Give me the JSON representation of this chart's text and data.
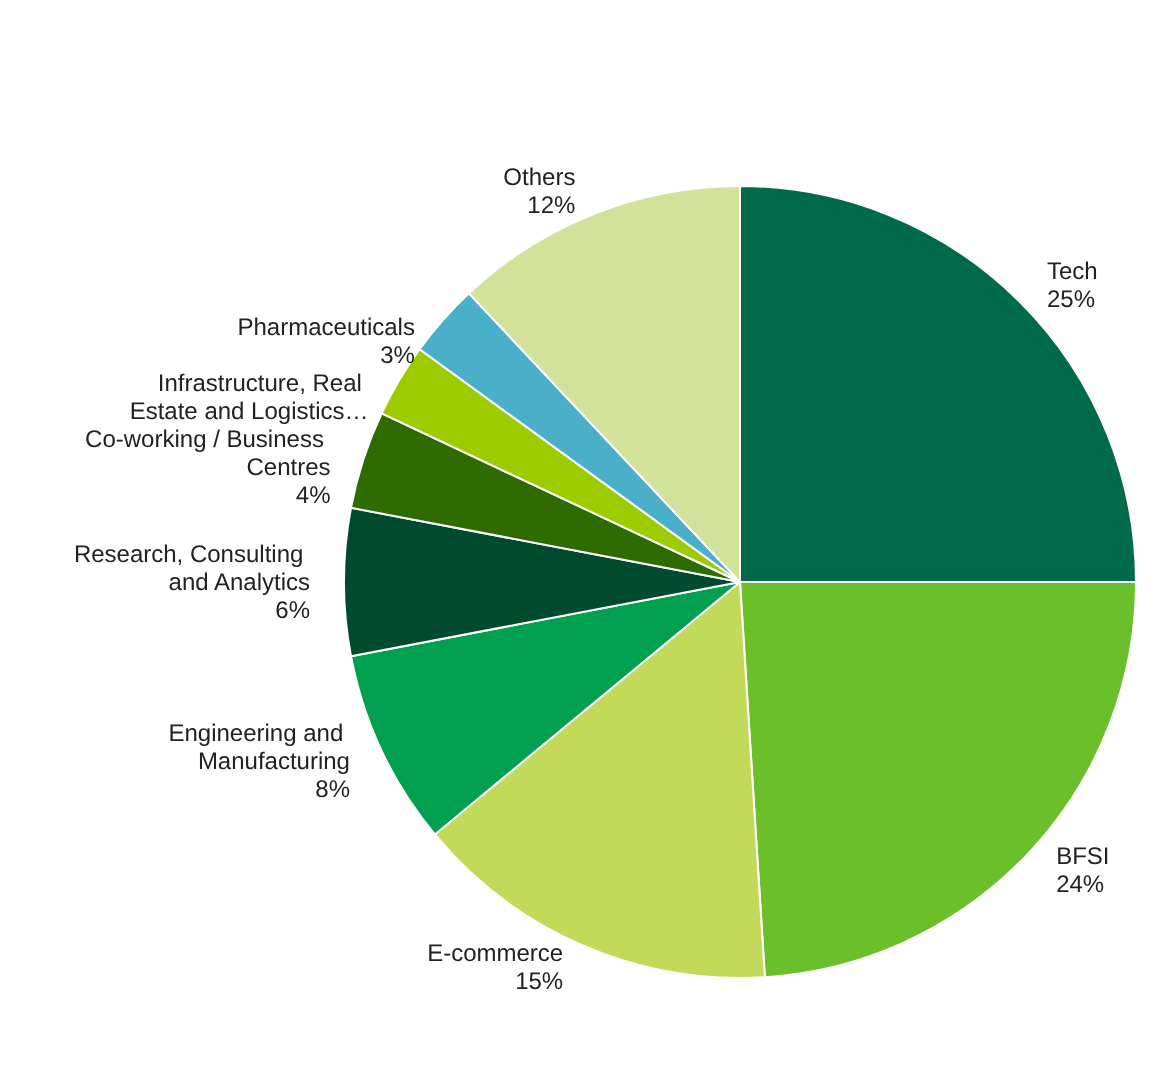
{
  "chart_data": {
    "type": "pie",
    "categories": [
      "Tech",
      "BFSI",
      "E-commerce",
      "Engineering and Manufacturing",
      "Research, Consulting and Analytics",
      "Co-working / Business Centres",
      "Infrastructure, Real Estate and Logistics…",
      "Pharmaceuticals",
      "Others"
    ],
    "values": [
      25,
      24,
      15,
      8,
      6,
      4,
      3,
      3,
      12
    ],
    "colors": [
      "#006b4a",
      "#6abf2a",
      "#c2d95a",
      "#00a04e",
      "#004a30",
      "#2e6b00",
      "#9ccc00",
      "#4aafc8",
      "#d3e29a"
    ],
    "value_labels": [
      "25%",
      "24%",
      "15%",
      "8%",
      "6%",
      "4%",
      null,
      "3%",
      "12%"
    ],
    "legend": false
  }
}
